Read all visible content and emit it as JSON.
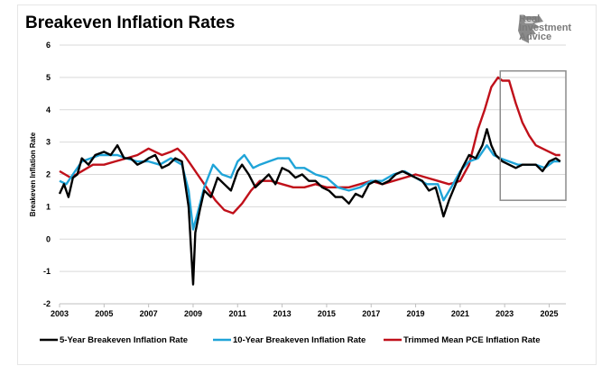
{
  "title": "Breakeven Inflation Rates",
  "logo": {
    "line1": "Real",
    "line2": "Investment",
    "line3": "Advice",
    "icon": "eagle-head-icon"
  },
  "chart_data": {
    "type": "line",
    "title": "Breakeven Inflation Rates",
    "ylabel": "Breakeven Inflation Rate",
    "xlabel": "",
    "xlim": [
      2003,
      2025.75
    ],
    "ylim": [
      -2,
      6
    ],
    "xticks": [
      2003,
      2005,
      2007,
      2009,
      2011,
      2013,
      2015,
      2017,
      2019,
      2021,
      2023,
      2025
    ],
    "xtick_labels": [
      "2003",
      "2005",
      "2007",
      "2009",
      "2011",
      "2013",
      "2015",
      "2017",
      "2019",
      "2021",
      "2023",
      "2025"
    ],
    "yticks": [
      -2,
      -1,
      0,
      1,
      2,
      3,
      4,
      5,
      6
    ],
    "ytick_labels": [
      "-2",
      "-1",
      "0",
      "1",
      "2",
      "3",
      "4",
      "5",
      "6"
    ],
    "grid": "horizontal",
    "legend_position": "bottom",
    "highlight_box": {
      "x": [
        2022.8,
        2025.75
      ],
      "y": [
        1.2,
        5.2
      ]
    },
    "series": [
      {
        "name": "5-Year Breakeven Inflation Rate",
        "color": "#000000",
        "x": [
          2003,
          2003.2,
          2003.4,
          2003.6,
          2003.8,
          2004,
          2004.3,
          2004.6,
          2005,
          2005.3,
          2005.6,
          2005.9,
          2006.2,
          2006.5,
          2006.8,
          2007,
          2007.3,
          2007.6,
          2007.9,
          2008.2,
          2008.5,
          2008.8,
          2008.9,
          2009.0,
          2009.1,
          2009.3,
          2009.5,
          2009.8,
          2010.1,
          2010.4,
          2010.7,
          2011,
          2011.2,
          2011.5,
          2011.8,
          2012.1,
          2012.4,
          2012.7,
          2013,
          2013.3,
          2013.6,
          2013.9,
          2014.2,
          2014.5,
          2014.8,
          2015.1,
          2015.4,
          2015.7,
          2016,
          2016.3,
          2016.6,
          2016.9,
          2017.2,
          2017.5,
          2017.8,
          2018.1,
          2018.4,
          2018.7,
          2019,
          2019.3,
          2019.6,
          2019.9,
          2020.1,
          2020.25,
          2020.5,
          2020.8,
          2021.1,
          2021.4,
          2021.7,
          2022,
          2022.2,
          2022.4,
          2022.6,
          2022.9,
          2023.2,
          2023.5,
          2023.8,
          2024.1,
          2024.4,
          2024.7,
          2025,
          2025.3,
          2025.5
        ],
        "y": [
          1.4,
          1.7,
          1.3,
          1.9,
          2.0,
          2.5,
          2.3,
          2.6,
          2.7,
          2.6,
          2.9,
          2.5,
          2.5,
          2.3,
          2.4,
          2.5,
          2.6,
          2.2,
          2.3,
          2.5,
          2.4,
          1.0,
          -0.2,
          -1.4,
          0.2,
          0.9,
          1.5,
          1.3,
          1.9,
          1.7,
          1.5,
          2.1,
          2.3,
          2.0,
          1.6,
          1.8,
          2.0,
          1.7,
          2.2,
          2.1,
          1.9,
          2.0,
          1.8,
          1.8,
          1.6,
          1.5,
          1.3,
          1.3,
          1.1,
          1.4,
          1.3,
          1.7,
          1.8,
          1.7,
          1.8,
          2.0,
          2.1,
          2.0,
          1.9,
          1.8,
          1.5,
          1.6,
          1.1,
          0.7,
          1.2,
          1.7,
          2.2,
          2.6,
          2.5,
          2.9,
          3.4,
          2.9,
          2.6,
          2.4,
          2.3,
          2.2,
          2.3,
          2.3,
          2.3,
          2.1,
          2.4,
          2.5,
          2.4
        ]
      },
      {
        "name": "10-Year Breakeven Inflation Rate",
        "color": "#1fa4d8",
        "x": [
          2003,
          2003.3,
          2003.6,
          2004,
          2004.4,
          2004.8,
          2005.2,
          2005.6,
          2006,
          2006.5,
          2007,
          2007.5,
          2008,
          2008.5,
          2008.8,
          2009.0,
          2009.2,
          2009.5,
          2009.9,
          2010.3,
          2010.7,
          2011,
          2011.3,
          2011.7,
          2012,
          2012.4,
          2012.8,
          2013,
          2013.3,
          2013.6,
          2014,
          2014.5,
          2015,
          2015.5,
          2016,
          2016.5,
          2017,
          2017.5,
          2018,
          2018.5,
          2019,
          2019.5,
          2020,
          2020.25,
          2020.6,
          2021,
          2021.4,
          2021.8,
          2022.2,
          2022.5,
          2022.8,
          2023.2,
          2023.6,
          2024,
          2024.4,
          2024.8,
          2025.2,
          2025.5
        ],
        "y": [
          1.8,
          1.7,
          2.0,
          2.4,
          2.5,
          2.6,
          2.6,
          2.6,
          2.5,
          2.4,
          2.4,
          2.3,
          2.5,
          2.3,
          1.5,
          0.3,
          0.8,
          1.6,
          2.3,
          2.0,
          1.9,
          2.4,
          2.6,
          2.2,
          2.3,
          2.4,
          2.5,
          2.5,
          2.5,
          2.2,
          2.2,
          2.0,
          1.9,
          1.6,
          1.5,
          1.6,
          1.8,
          1.8,
          2.0,
          2.1,
          1.9,
          1.7,
          1.7,
          1.2,
          1.6,
          2.1,
          2.4,
          2.5,
          2.9,
          2.6,
          2.5,
          2.4,
          2.3,
          2.3,
          2.3,
          2.2,
          2.4,
          2.4
        ]
      },
      {
        "name": "Trimmed Mean PCE Inflation Rate",
        "color": "#c0101a",
        "x": [
          2003,
          2003.5,
          2004,
          2004.5,
          2005,
          2005.5,
          2006,
          2006.5,
          2007,
          2007.3,
          2007.6,
          2008,
          2008.3,
          2008.6,
          2008.9,
          2009.2,
          2009.6,
          2010,
          2010.4,
          2010.8,
          2011.2,
          2011.6,
          2012,
          2012.5,
          2013,
          2013.5,
          2014,
          2014.5,
          2015,
          2015.5,
          2016,
          2016.5,
          2017,
          2017.5,
          2018,
          2018.5,
          2019,
          2019.5,
          2020,
          2020.5,
          2021,
          2021.4,
          2021.8,
          2022.1,
          2022.4,
          2022.7,
          2022.9,
          2023.2,
          2023.5,
          2023.8,
          2024.1,
          2024.4,
          2024.7,
          2025,
          2025.3,
          2025.5
        ],
        "y": [
          2.1,
          1.9,
          2.1,
          2.3,
          2.3,
          2.4,
          2.5,
          2.6,
          2.8,
          2.7,
          2.6,
          2.7,
          2.8,
          2.6,
          2.3,
          2.0,
          1.6,
          1.2,
          0.9,
          0.8,
          1.1,
          1.5,
          1.8,
          1.8,
          1.7,
          1.6,
          1.6,
          1.7,
          1.6,
          1.6,
          1.6,
          1.7,
          1.8,
          1.7,
          1.8,
          1.9,
          2.0,
          1.9,
          1.8,
          1.7,
          1.8,
          2.3,
          3.4,
          4.0,
          4.7,
          5.0,
          4.9,
          4.9,
          4.2,
          3.6,
          3.2,
          2.9,
          2.8,
          2.7,
          2.6,
          2.6
        ]
      }
    ]
  }
}
